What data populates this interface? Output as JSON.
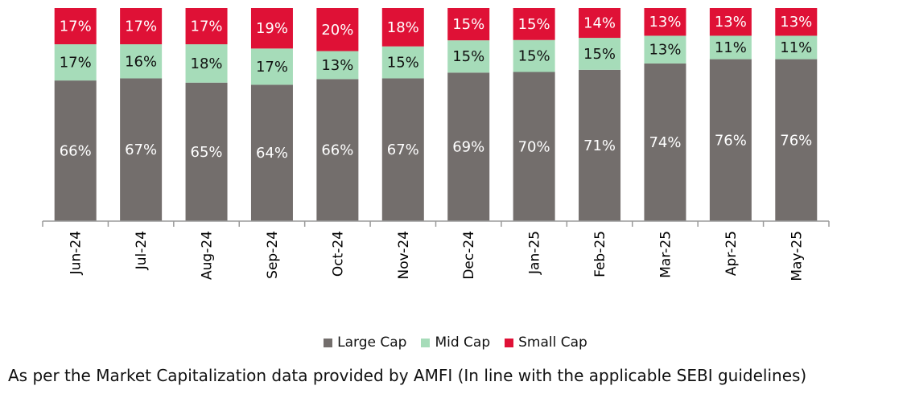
{
  "chart_data": {
    "type": "bar",
    "stacked": true,
    "normalized": true,
    "categories": [
      "Jun-24",
      "Jul-24",
      "Aug-24",
      "Sep-24",
      "Oct-24",
      "Nov-24",
      "Dec-24",
      "Jan-25",
      "Feb-25",
      "Mar-25",
      "Apr-25",
      "May-25"
    ],
    "series": [
      {
        "name": "Large Cap",
        "color": "#736e6c",
        "values": [
          66,
          67,
          65,
          64,
          66,
          67,
          69,
          70,
          71,
          74,
          76,
          76
        ],
        "labels": [
          "66%",
          "67%",
          "65%",
          "64%",
          "66%",
          "67%",
          "69%",
          "70%",
          "71%",
          "74%",
          "76%",
          "76%"
        ]
      },
      {
        "name": "Mid Cap",
        "color": "#a6dcb9",
        "values": [
          17,
          16,
          18,
          17,
          13,
          15,
          15,
          15,
          15,
          13,
          11,
          11
        ],
        "labels": [
          "17%",
          "16%",
          "18%",
          "17%",
          "13%",
          "15%",
          "15%",
          "15%",
          "15%",
          "13%",
          "11%",
          "11%"
        ]
      },
      {
        "name": "Small Cap",
        "color": "#df1136",
        "values": [
          17,
          17,
          17,
          19,
          20,
          18,
          15,
          15,
          14,
          13,
          13,
          13
        ],
        "labels": [
          "17%",
          "17%",
          "17%",
          "19%",
          "20%",
          "18%",
          "15%",
          "15%",
          "14%",
          "13%",
          "13%",
          "13%"
        ]
      }
    ],
    "legend_position": "bottom",
    "grid": false
  },
  "legend": [
    {
      "label": "Large Cap",
      "color": "#736e6c"
    },
    {
      "label": "Mid Cap",
      "color": "#a6dcb9"
    },
    {
      "label": "Small Cap",
      "color": "#df1136"
    }
  ],
  "footnote": "As per the Market Capitalization data provided by AMFI (In line with the applicable SEBI guidelines)"
}
